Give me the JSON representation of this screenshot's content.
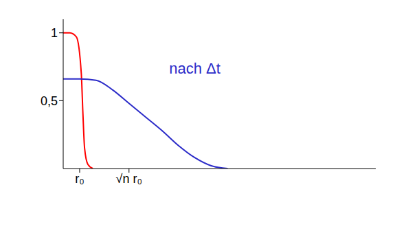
{
  "chart_data": {
    "type": "line",
    "xlim": [
      0,
      19
    ],
    "ylim": [
      0,
      1.1
    ],
    "xticks": [
      {
        "value": 1,
        "label": "r₀"
      },
      {
        "value": 4,
        "label": "√n r₀"
      }
    ],
    "yticks": [
      {
        "value": 0.5,
        "label": "0,5"
      },
      {
        "value": 1,
        "label": "1"
      }
    ],
    "grid": false,
    "series": [
      {
        "color": "#ff0000",
        "x": [
          0,
          0.4,
          0.8,
          1.1,
          1.2,
          1.3,
          1.5,
          1.8
        ],
        "values": [
          1.0,
          1.0,
          0.97,
          0.7,
          0.4,
          0.15,
          0.03,
          0
        ]
      },
      {
        "color": "#2b2bc8",
        "x": [
          0,
          1,
          2,
          3,
          4,
          5,
          6,
          7,
          8,
          9,
          10
        ],
        "values": [
          0.66,
          0.66,
          0.65,
          0.58,
          0.48,
          0.38,
          0.28,
          0.17,
          0.08,
          0.02,
          0
        ]
      }
    ],
    "annotations": [
      {
        "text": "nach Δt",
        "x": 8,
        "y": 0.74,
        "color": "#2b2bc8"
      }
    ]
  }
}
